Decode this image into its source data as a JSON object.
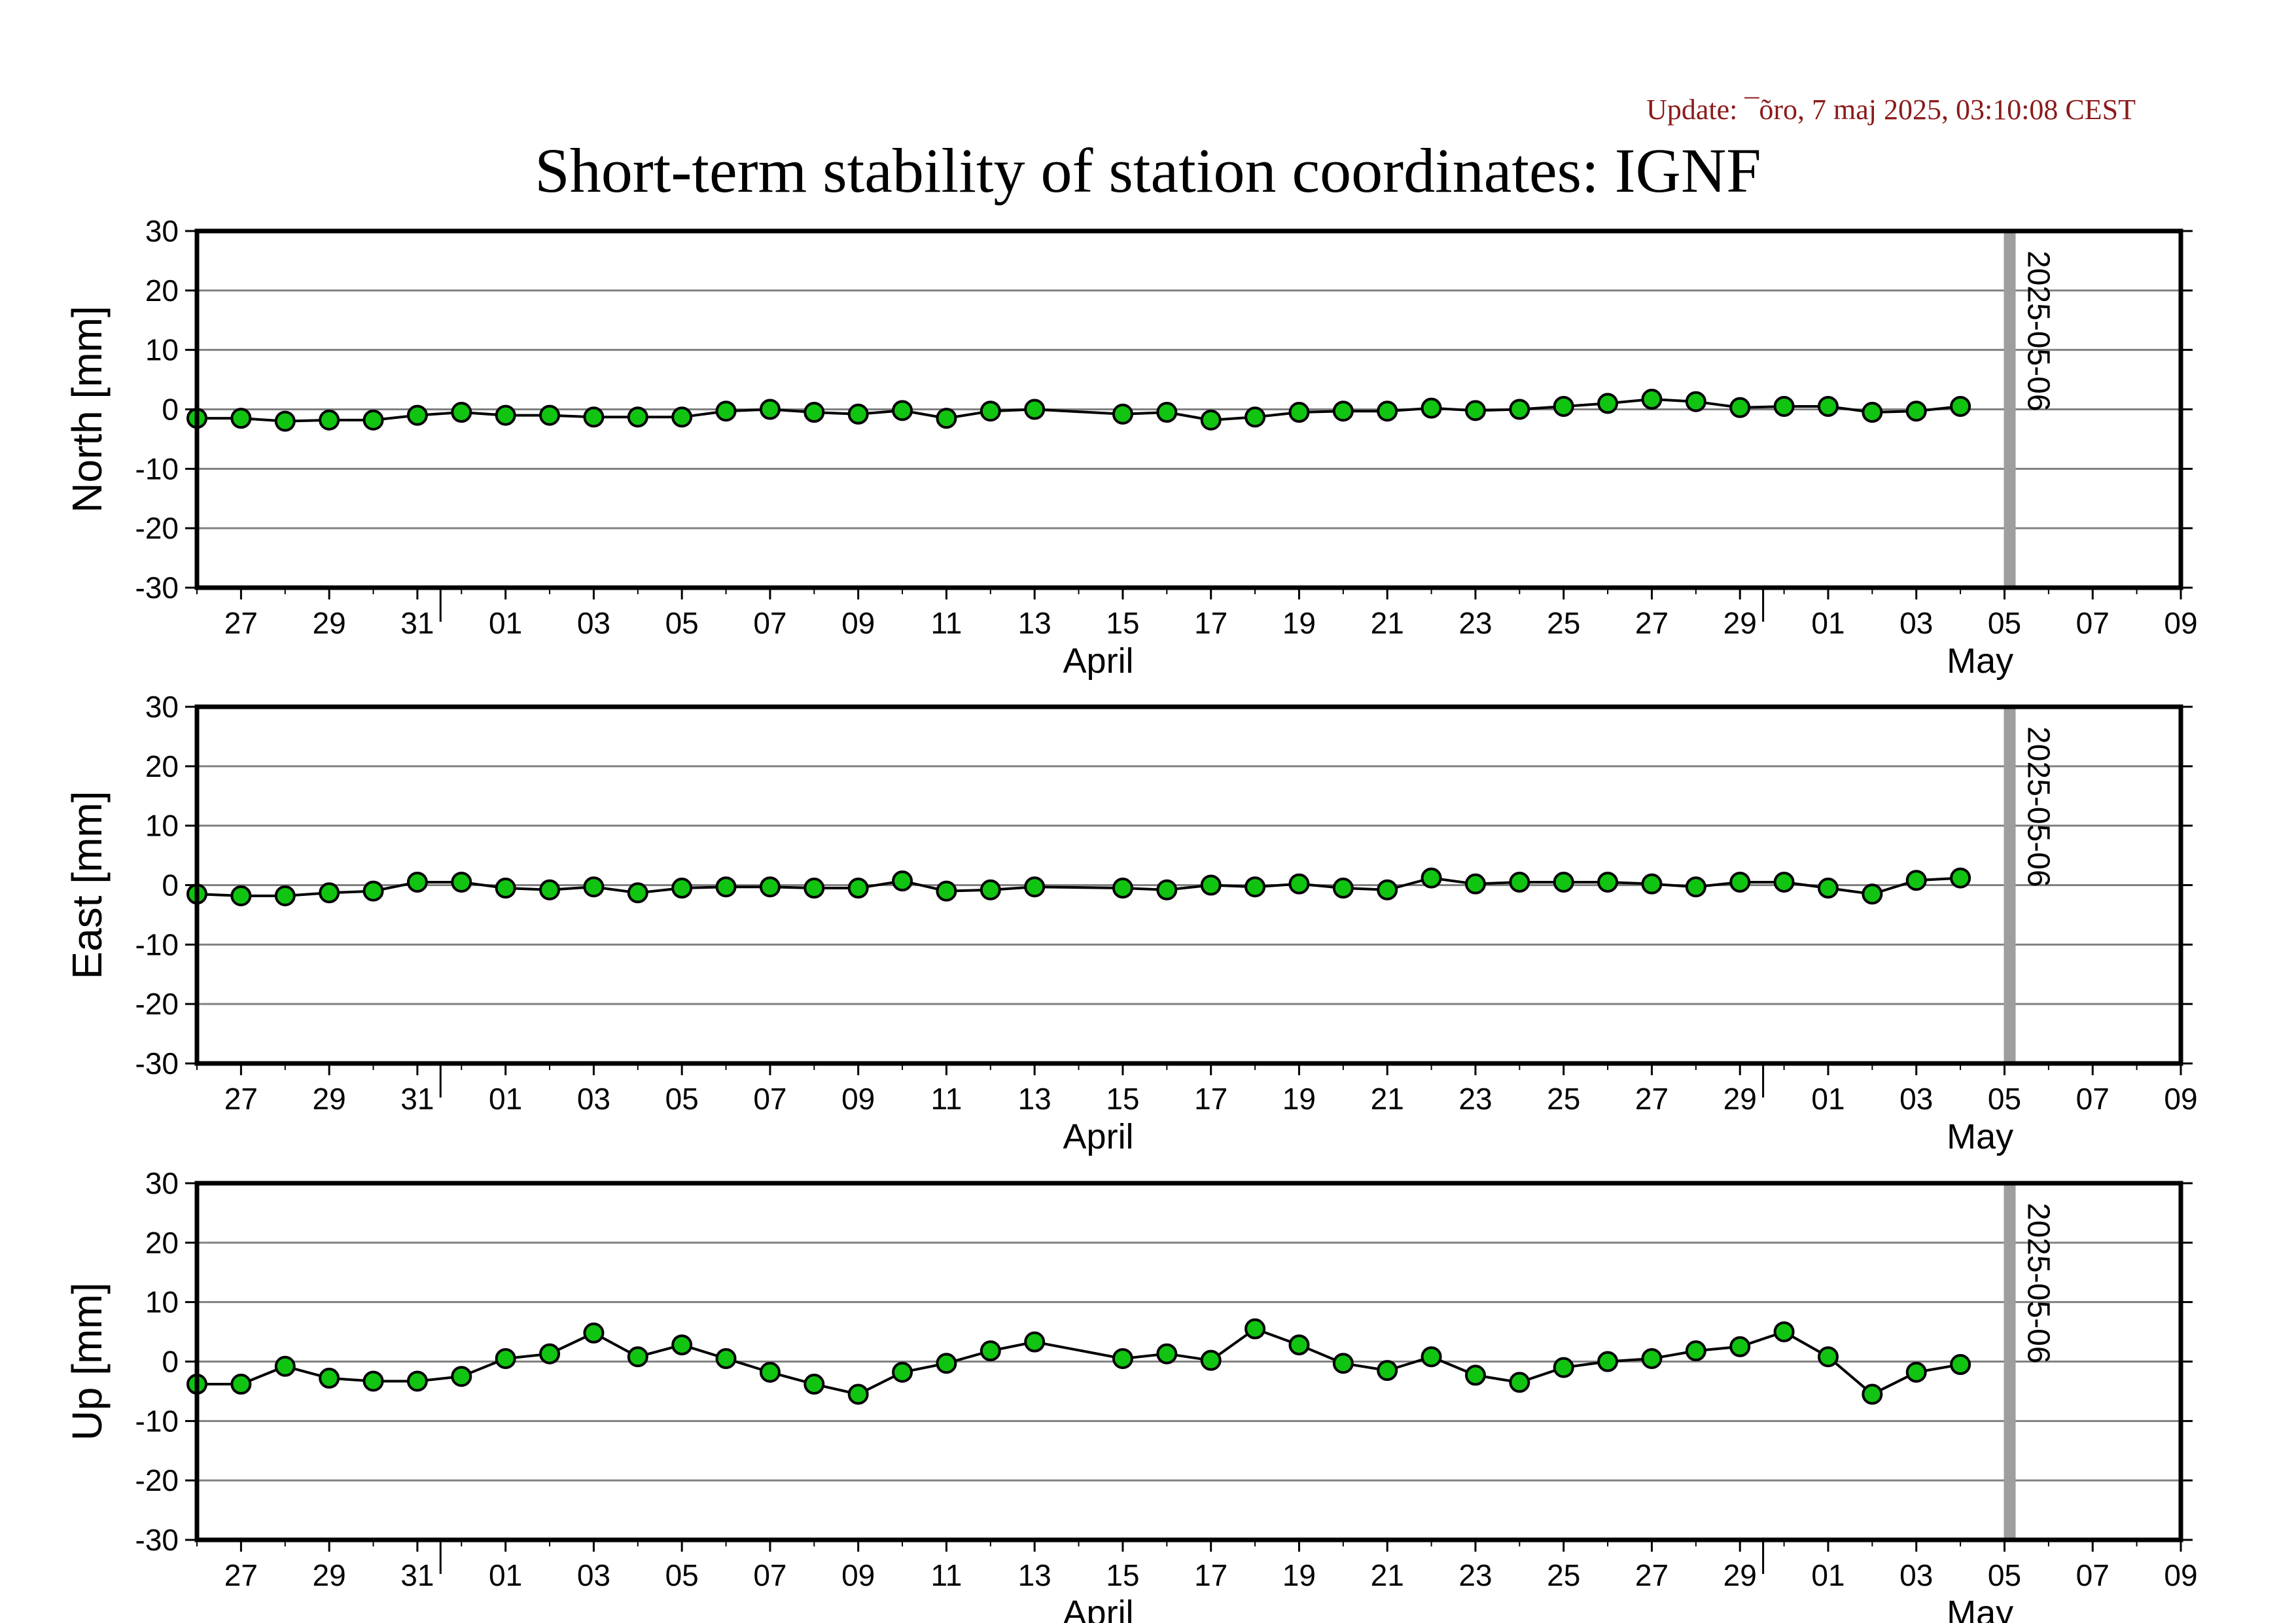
{
  "update_text": "Update: ¯õro, 7 maj 2025, 03:10:08 CEST",
  "title": "Short-term stability of station coordinates: IGNF",
  "colors": {
    "marker_fill": "#11c411",
    "marker_stroke": "#000000",
    "line": "#000000",
    "gridline": "#808080",
    "date_marker": "#9e9e9e"
  },
  "chart_data": [
    {
      "type": "line",
      "ylabel": "North [mm]",
      "ylim": [
        -30,
        30
      ],
      "yticks": [
        30,
        20,
        10,
        0,
        -10,
        -20,
        -30
      ],
      "grid": true,
      "x_start": "2025-03-26",
      "x_end": "2025-05-10",
      "x_ticks": [
        "27",
        "29",
        "31",
        "01",
        "03",
        "05",
        "07",
        "09",
        "11",
        "13",
        "15",
        "17",
        "19",
        "21",
        "23",
        "25",
        "27",
        "29",
        "01",
        "03",
        "05",
        "07",
        "09"
      ],
      "month_labels": [
        "April",
        "May"
      ],
      "marker_date": "2025-05-06",
      "marker_label": "2025-05-06",
      "x": [
        "2025-03-26",
        "2025-03-27",
        "2025-03-28",
        "2025-03-29",
        "2025-03-30",
        "2025-03-31",
        "2025-04-01",
        "2025-04-02",
        "2025-04-03",
        "2025-04-04",
        "2025-04-05",
        "2025-04-06",
        "2025-04-07",
        "2025-04-08",
        "2025-04-09",
        "2025-04-10",
        "2025-04-11",
        "2025-04-12",
        "2025-04-13",
        "2025-04-14",
        "2025-04-16",
        "2025-04-17",
        "2025-04-18",
        "2025-04-19",
        "2025-04-20",
        "2025-04-21",
        "2025-04-22",
        "2025-04-23",
        "2025-04-24",
        "2025-04-25",
        "2025-04-26",
        "2025-04-27",
        "2025-04-28",
        "2025-04-29",
        "2025-04-30",
        "2025-05-01",
        "2025-05-02",
        "2025-05-03",
        "2025-05-04",
        "2025-05-05"
      ],
      "values": [
        -1.5,
        -1.5,
        -2,
        -1.8,
        -1.8,
        -1,
        -0.5,
        -1,
        -1,
        -1.3,
        -1.3,
        -1.3,
        -0.3,
        0,
        -0.5,
        -0.8,
        -0.2,
        -1.5,
        -0.3,
        0,
        -0.8,
        -0.5,
        -1.8,
        -1.3,
        -0.5,
        -0.3,
        -0.3,
        0.2,
        -0.2,
        0,
        0.5,
        1,
        1.7,
        1.3,
        0.3,
        0.5,
        0.5,
        -0.5,
        -0.3,
        0.5
      ]
    },
    {
      "type": "line",
      "ylabel": "East [mm]",
      "ylim": [
        -30,
        30
      ],
      "yticks": [
        30,
        20,
        10,
        0,
        -10,
        -20,
        -30
      ],
      "grid": true,
      "x_start": "2025-03-26",
      "x_end": "2025-05-10",
      "x_ticks": [
        "27",
        "29",
        "31",
        "01",
        "03",
        "05",
        "07",
        "09",
        "11",
        "13",
        "15",
        "17",
        "19",
        "21",
        "23",
        "25",
        "27",
        "29",
        "01",
        "03",
        "05",
        "07",
        "09"
      ],
      "month_labels": [
        "April",
        "May"
      ],
      "marker_date": "2025-05-06",
      "marker_label": "2025-05-06",
      "x": [
        "2025-03-26",
        "2025-03-27",
        "2025-03-28",
        "2025-03-29",
        "2025-03-30",
        "2025-03-31",
        "2025-04-01",
        "2025-04-02",
        "2025-04-03",
        "2025-04-04",
        "2025-04-05",
        "2025-04-06",
        "2025-04-07",
        "2025-04-08",
        "2025-04-09",
        "2025-04-10",
        "2025-04-11",
        "2025-04-12",
        "2025-04-13",
        "2025-04-14",
        "2025-04-16",
        "2025-04-17",
        "2025-04-18",
        "2025-04-19",
        "2025-04-20",
        "2025-04-21",
        "2025-04-22",
        "2025-04-23",
        "2025-04-24",
        "2025-04-25",
        "2025-04-26",
        "2025-04-27",
        "2025-04-28",
        "2025-04-29",
        "2025-04-30",
        "2025-05-01",
        "2025-05-02",
        "2025-05-03",
        "2025-05-04",
        "2025-05-05"
      ],
      "values": [
        -1.5,
        -1.8,
        -1.8,
        -1.3,
        -1,
        0.5,
        0.5,
        -0.5,
        -0.8,
        -0.3,
        -1.3,
        -0.5,
        -0.3,
        -0.3,
        -0.5,
        -0.5,
        0.7,
        -1,
        -0.8,
        -0.3,
        -0.5,
        -0.8,
        0,
        -0.3,
        0.2,
        -0.5,
        -0.8,
        1.2,
        0.2,
        0.5,
        0.5,
        0.5,
        0.2,
        -0.3,
        0.5,
        0.5,
        -0.5,
        -1.5,
        0.8,
        1.2
      ]
    },
    {
      "type": "line",
      "ylabel": "Up [mm]",
      "ylim": [
        -30,
        30
      ],
      "yticks": [
        30,
        20,
        10,
        0,
        -10,
        -20,
        -30
      ],
      "grid": true,
      "x_start": "2025-03-26",
      "x_end": "2025-05-10",
      "x_ticks": [
        "27",
        "29",
        "31",
        "01",
        "03",
        "05",
        "07",
        "09",
        "11",
        "13",
        "15",
        "17",
        "19",
        "21",
        "23",
        "25",
        "27",
        "29",
        "01",
        "03",
        "05",
        "07",
        "09"
      ],
      "month_labels": [
        "April",
        "May"
      ],
      "marker_date": "2025-05-06",
      "marker_label": "2025-05-06",
      "x": [
        "2025-03-26",
        "2025-03-27",
        "2025-03-28",
        "2025-03-29",
        "2025-03-30",
        "2025-03-31",
        "2025-04-01",
        "2025-04-02",
        "2025-04-03",
        "2025-04-04",
        "2025-04-05",
        "2025-04-06",
        "2025-04-07",
        "2025-04-08",
        "2025-04-09",
        "2025-04-10",
        "2025-04-11",
        "2025-04-12",
        "2025-04-13",
        "2025-04-14",
        "2025-04-16",
        "2025-04-17",
        "2025-04-18",
        "2025-04-19",
        "2025-04-20",
        "2025-04-21",
        "2025-04-22",
        "2025-04-23",
        "2025-04-24",
        "2025-04-25",
        "2025-04-26",
        "2025-04-27",
        "2025-04-28",
        "2025-04-29",
        "2025-04-30",
        "2025-05-01",
        "2025-05-02",
        "2025-05-03",
        "2025-05-04",
        "2025-05-05"
      ],
      "values": [
        -3.8,
        -3.8,
        -0.8,
        -2.8,
        -3.3,
        -3.3,
        -2.5,
        0.5,
        1.3,
        4.8,
        0.8,
        2.8,
        0.5,
        -1.8,
        -3.8,
        -5.5,
        -1.8,
        -0.3,
        1.8,
        3.3,
        0.5,
        1.3,
        0.2,
        5.5,
        2.8,
        -0.3,
        -1.5,
        0.8,
        -2.3,
        -3.5,
        -1,
        0,
        0.5,
        1.8,
        2.5,
        5,
        0.8,
        -5.5,
        -1.8,
        -0.5
      ]
    }
  ]
}
